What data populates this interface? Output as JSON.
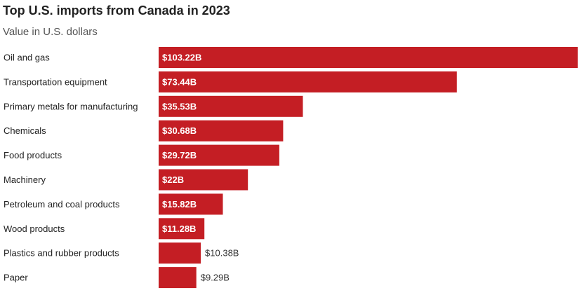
{
  "chart_data": {
    "type": "bar",
    "orientation": "horizontal",
    "title": "Top U.S. imports from Canada in 2023",
    "subtitle": "Value in U.S. dollars",
    "xlabel": "",
    "ylabel": "",
    "grid": false,
    "legend": "none",
    "bar_color": "#c41e24",
    "xlim": [
      0,
      103.22
    ],
    "categories": [
      "Oil and gas",
      "Transportation equipment",
      "Primary metals for manufacturing",
      "Chemicals",
      "Food products",
      "Machinery",
      "Petroleum and coal products",
      "Wood products",
      "Plastics and rubber products",
      "Paper"
    ],
    "values": [
      103.22,
      73.44,
      35.53,
      30.68,
      29.72,
      22,
      15.82,
      11.28,
      10.38,
      9.29
    ],
    "value_labels": [
      "$103.22B",
      "$73.44B",
      "$35.53B",
      "$30.68B",
      "$29.72B",
      "$22B",
      "$15.82B",
      "$11.28B",
      "$10.38B",
      "$9.29B"
    ],
    "label_inside": [
      true,
      true,
      true,
      true,
      true,
      true,
      true,
      true,
      false,
      false
    ]
  }
}
